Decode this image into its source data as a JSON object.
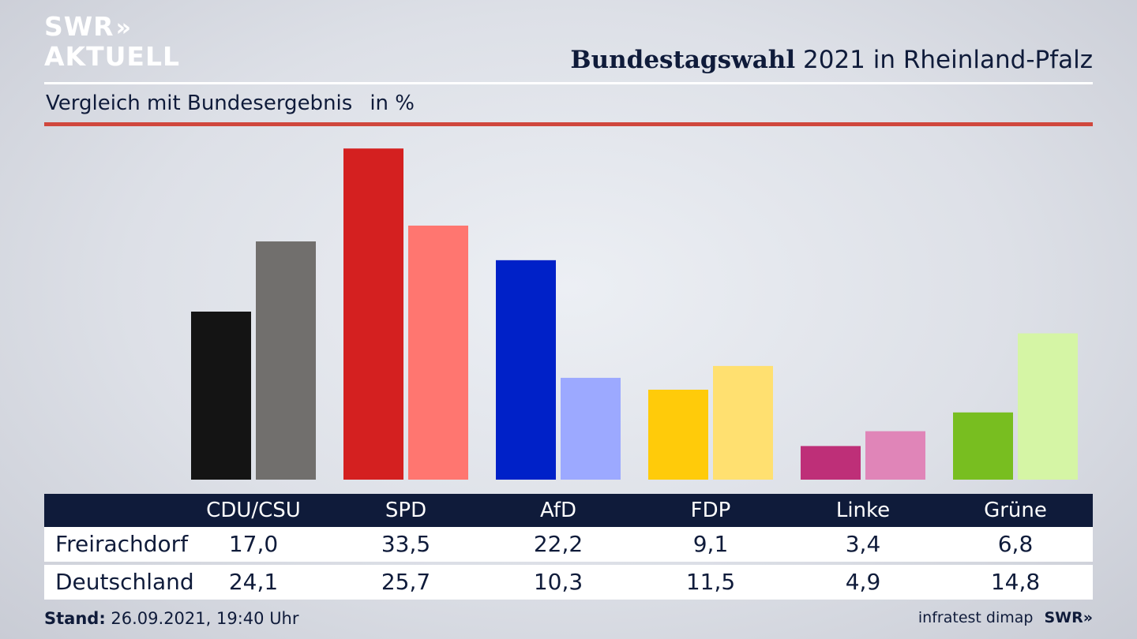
{
  "brand": {
    "logo_line1": "SWR",
    "logo_chevrons": "»",
    "logo_line2": "AKTUELL",
    "footer_brand": "SWR»"
  },
  "header": {
    "title_bold": "Bundestagswahl",
    "title_rest": "2021 in Rheinland-Pfalz",
    "subtitle": "Vergleich mit Bundesergebnis",
    "unit": "in %"
  },
  "colors": {
    "accent_rule": "#d0473d",
    "table_header_bg": "#0f1b3a"
  },
  "chart_data": {
    "type": "bar",
    "title": "Bundestagswahl 2021 in Rheinland-Pfalz",
    "subtitle": "Vergleich mit Bundesergebnis",
    "unit": "in %",
    "grid": false,
    "legend": "none",
    "categories": [
      "CDU/CSU",
      "SPD",
      "AfD",
      "FDP",
      "Linke",
      "Grüne"
    ],
    "series": [
      {
        "name": "Freirachdorf",
        "values": [
          17.0,
          33.5,
          22.2,
          9.1,
          3.4,
          6.8
        ],
        "labels": [
          "17,0",
          "33,5",
          "22,2",
          "9,1",
          "3,4",
          "6,8"
        ],
        "colors": [
          "#141414",
          "#d42020",
          "#0021c8",
          "#ffcb0a",
          "#be2f78",
          "#78be20"
        ]
      },
      {
        "name": "Deutschland",
        "values": [
          24.1,
          25.7,
          10.3,
          11.5,
          4.9,
          14.8
        ],
        "labels": [
          "24,1",
          "25,7",
          "10,3",
          "11,5",
          "4,9",
          "14,8"
        ],
        "colors": [
          "#716f6d",
          "#ff7670",
          "#9ca9ff",
          "#ffe070",
          "#e085b8",
          "#d5f5a5"
        ]
      }
    ]
  },
  "footer": {
    "stand_label": "Stand:",
    "stand_value": "26.09.2021, 19:40 Uhr",
    "source": "infratest dimap"
  }
}
